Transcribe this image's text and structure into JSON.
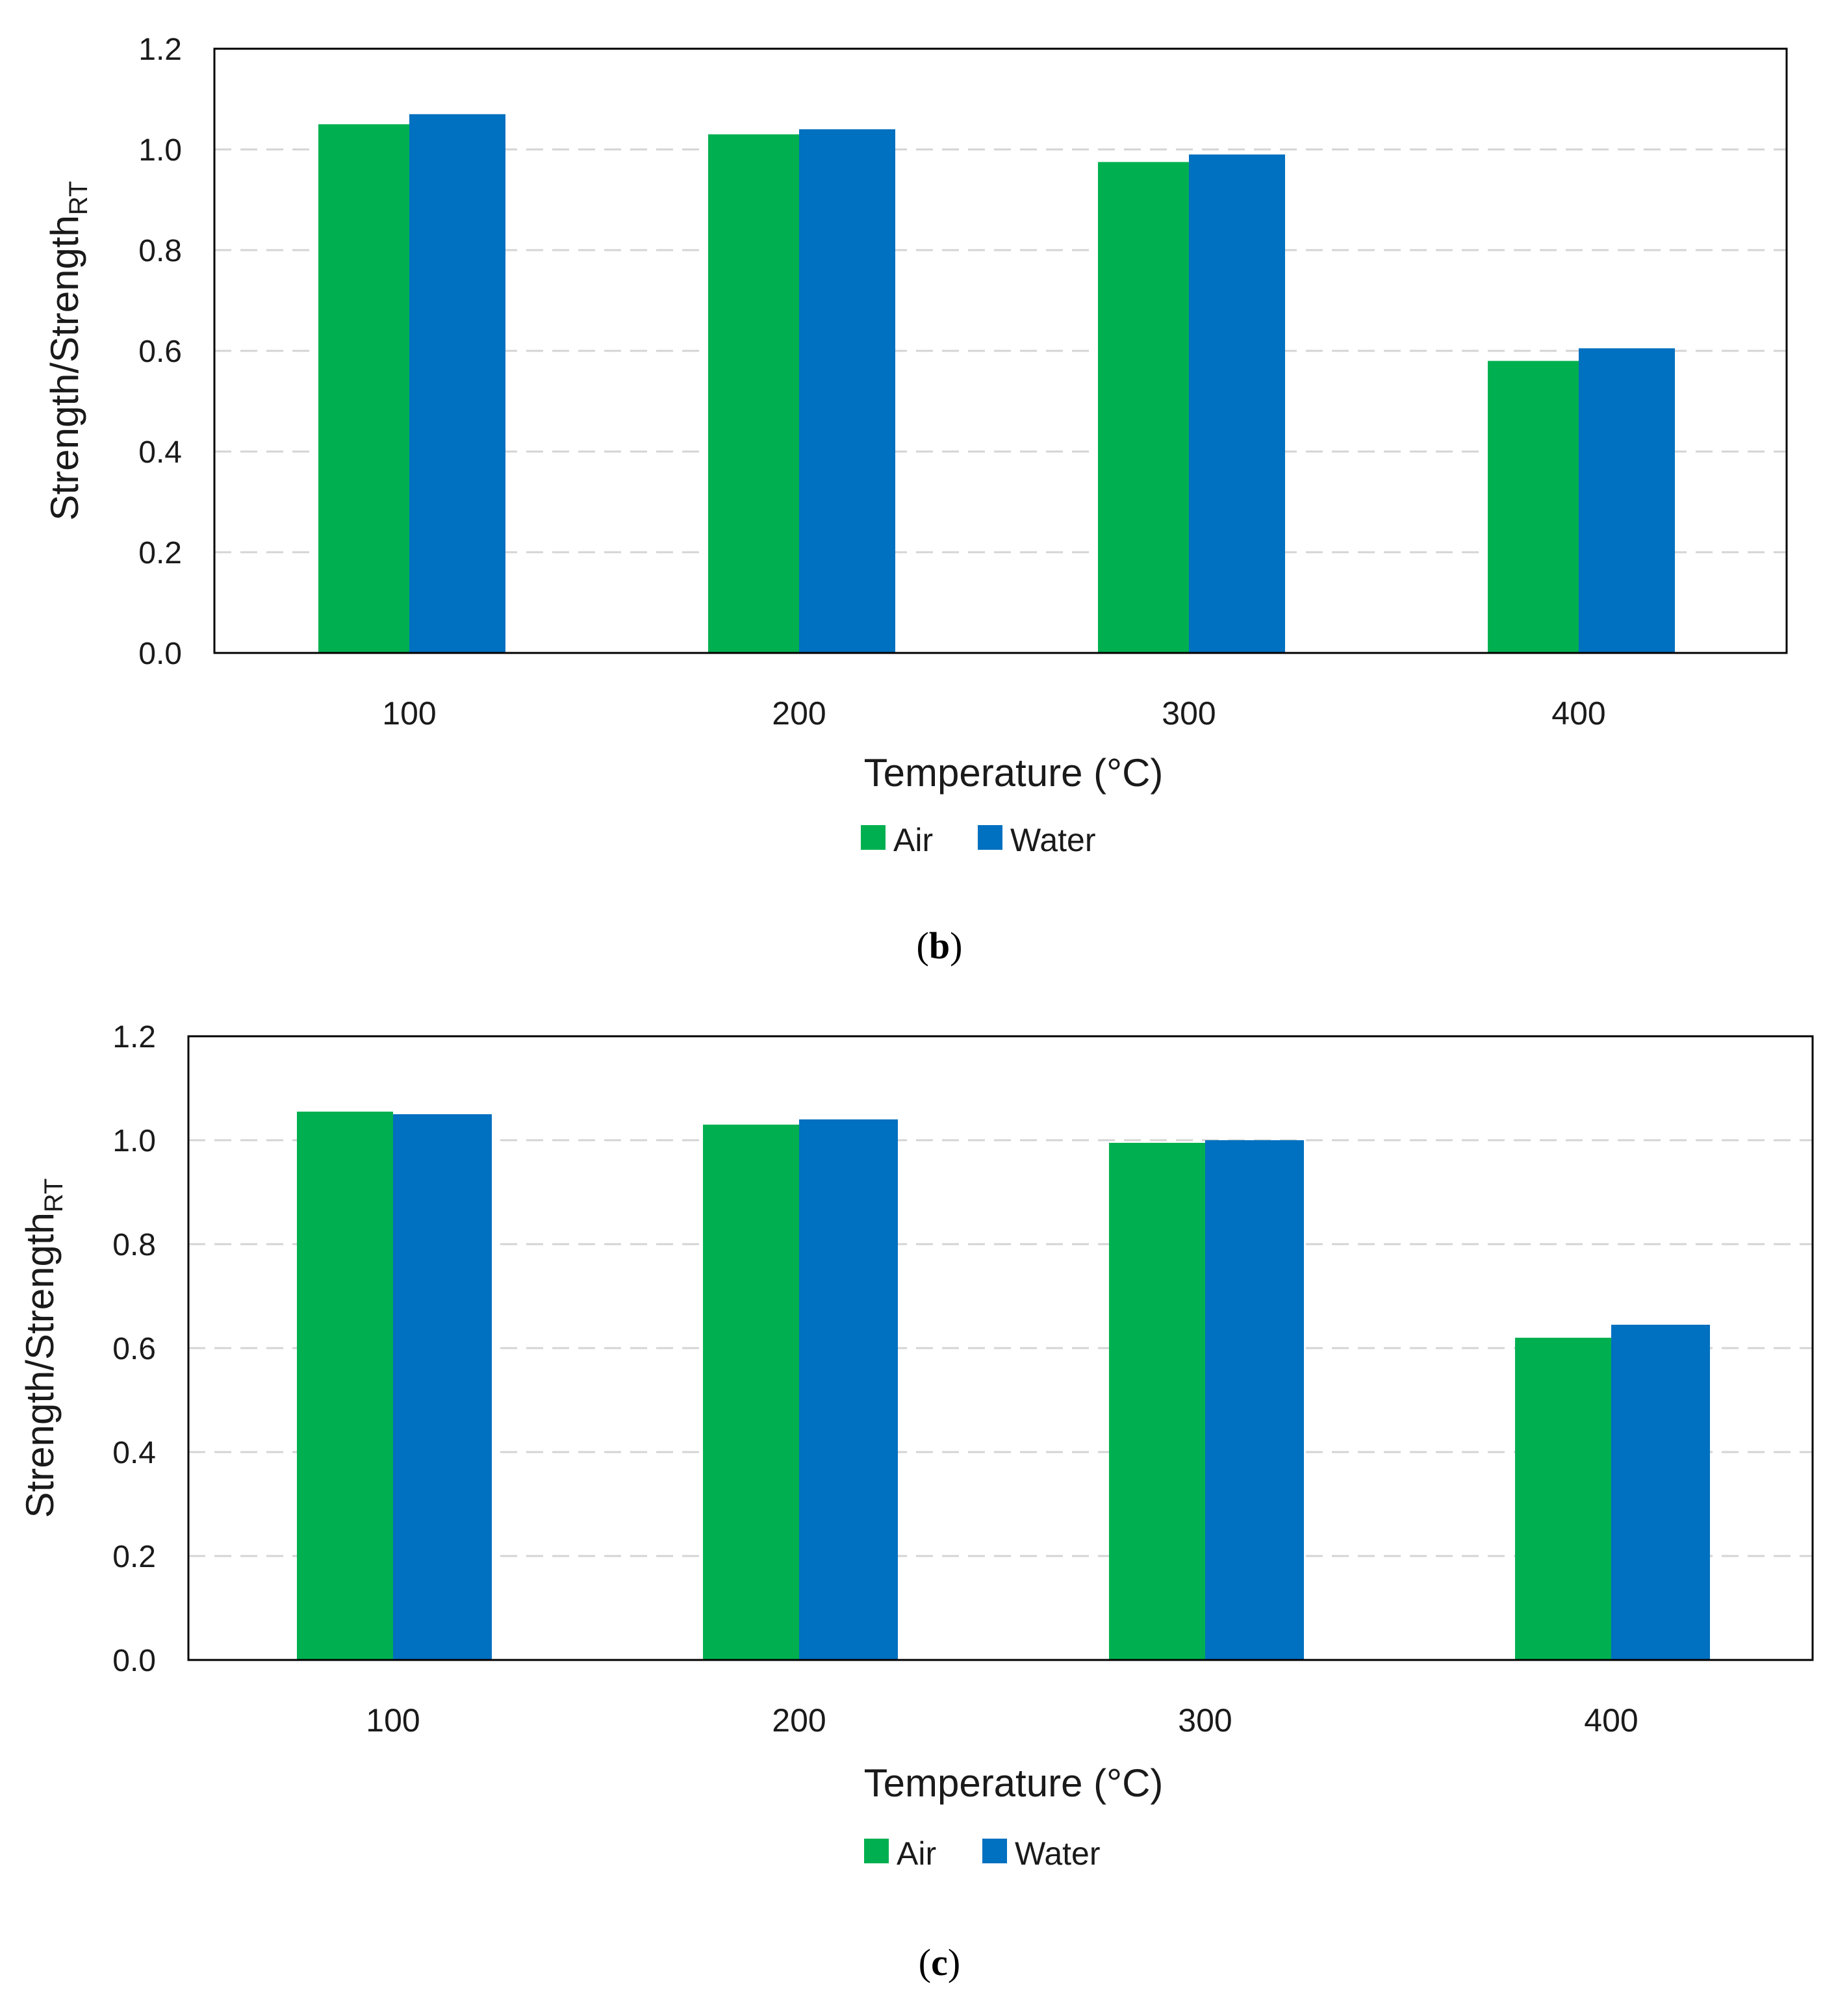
{
  "colors": {
    "air": "#00b050",
    "water": "#0070c0"
  },
  "chart_data": [
    {
      "type": "bar",
      "panel": "b",
      "caption_open": "(",
      "caption_letter": "b",
      "caption_close": ")",
      "categories": [
        "100",
        "200",
        "300",
        "400"
      ],
      "series": [
        {
          "name": "Air",
          "values": [
            1.05,
            1.03,
            0.975,
            0.58
          ]
        },
        {
          "name": "Water",
          "values": [
            1.07,
            1.04,
            0.99,
            0.605
          ]
        }
      ],
      "xlabel": "Temperature (°C)",
      "ylabel_main": "Strength/Strength",
      "ylabel_sub": "RT",
      "ylim": [
        0,
        1.2
      ],
      "yticks": [
        "0.0",
        "0.2",
        "0.4",
        "0.6",
        "0.8",
        "1.0",
        "1.2"
      ],
      "grid": true,
      "legend": "bottom-center"
    },
    {
      "type": "bar",
      "panel": "c",
      "caption_open": "(",
      "caption_letter": "c",
      "caption_close": ")",
      "categories": [
        "100",
        "200",
        "300",
        "400"
      ],
      "series": [
        {
          "name": "Air",
          "values": [
            1.055,
            1.03,
            0.995,
            0.62
          ]
        },
        {
          "name": "Water",
          "values": [
            1.05,
            1.04,
            1.0,
            0.645
          ]
        }
      ],
      "xlabel": "Temperature (°C)",
      "ylabel_main": "Strength/Strength",
      "ylabel_sub": "RT",
      "ylim": [
        0,
        1.2
      ],
      "yticks": [
        "0.0",
        "0.2",
        "0.4",
        "0.6",
        "0.8",
        "1.0",
        "1.2"
      ],
      "grid": true,
      "legend": "bottom-center"
    }
  ]
}
